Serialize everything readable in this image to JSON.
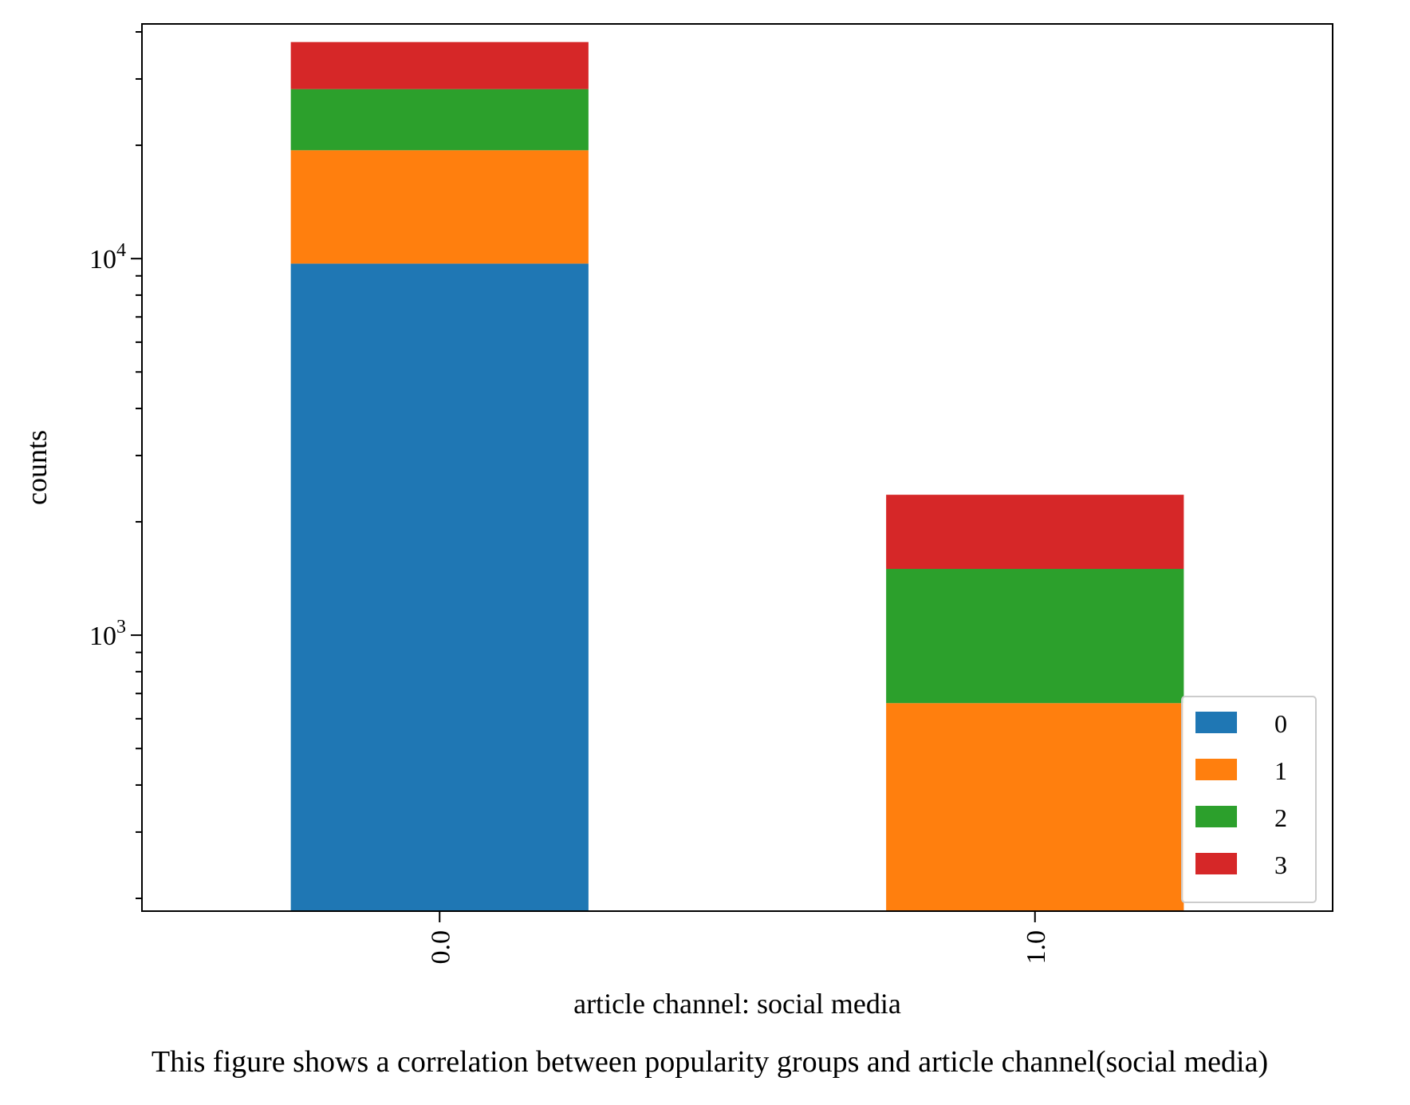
{
  "chart_data": {
    "type": "bar",
    "stacked": true,
    "categories": [
      "0.0",
      "1.0"
    ],
    "series": [
      {
        "name": "0",
        "color": "#1f77b4",
        "values": [
          9700,
          0
        ]
      },
      {
        "name": "1",
        "color": "#ff7f0e",
        "values": [
          9700,
          660
        ]
      },
      {
        "name": "2",
        "color": "#2ca02c",
        "values": [
          8800,
          840
        ]
      },
      {
        "name": "3",
        "color": "#d62728",
        "values": [
          9400,
          860
        ]
      }
    ],
    "xlabel": "article channel: social media",
    "ylabel": "counts",
    "yscale": "log",
    "ylim": [
      185,
      42000
    ],
    "yticks": [
      {
        "value": 1000,
        "base": "10",
        "exp": "3"
      },
      {
        "value": 10000,
        "base": "10",
        "exp": "4"
      }
    ],
    "grid": false,
    "legend_position": "lower-right",
    "caption": "This figure shows a correlation between popularity groups and article channel(social media)"
  }
}
